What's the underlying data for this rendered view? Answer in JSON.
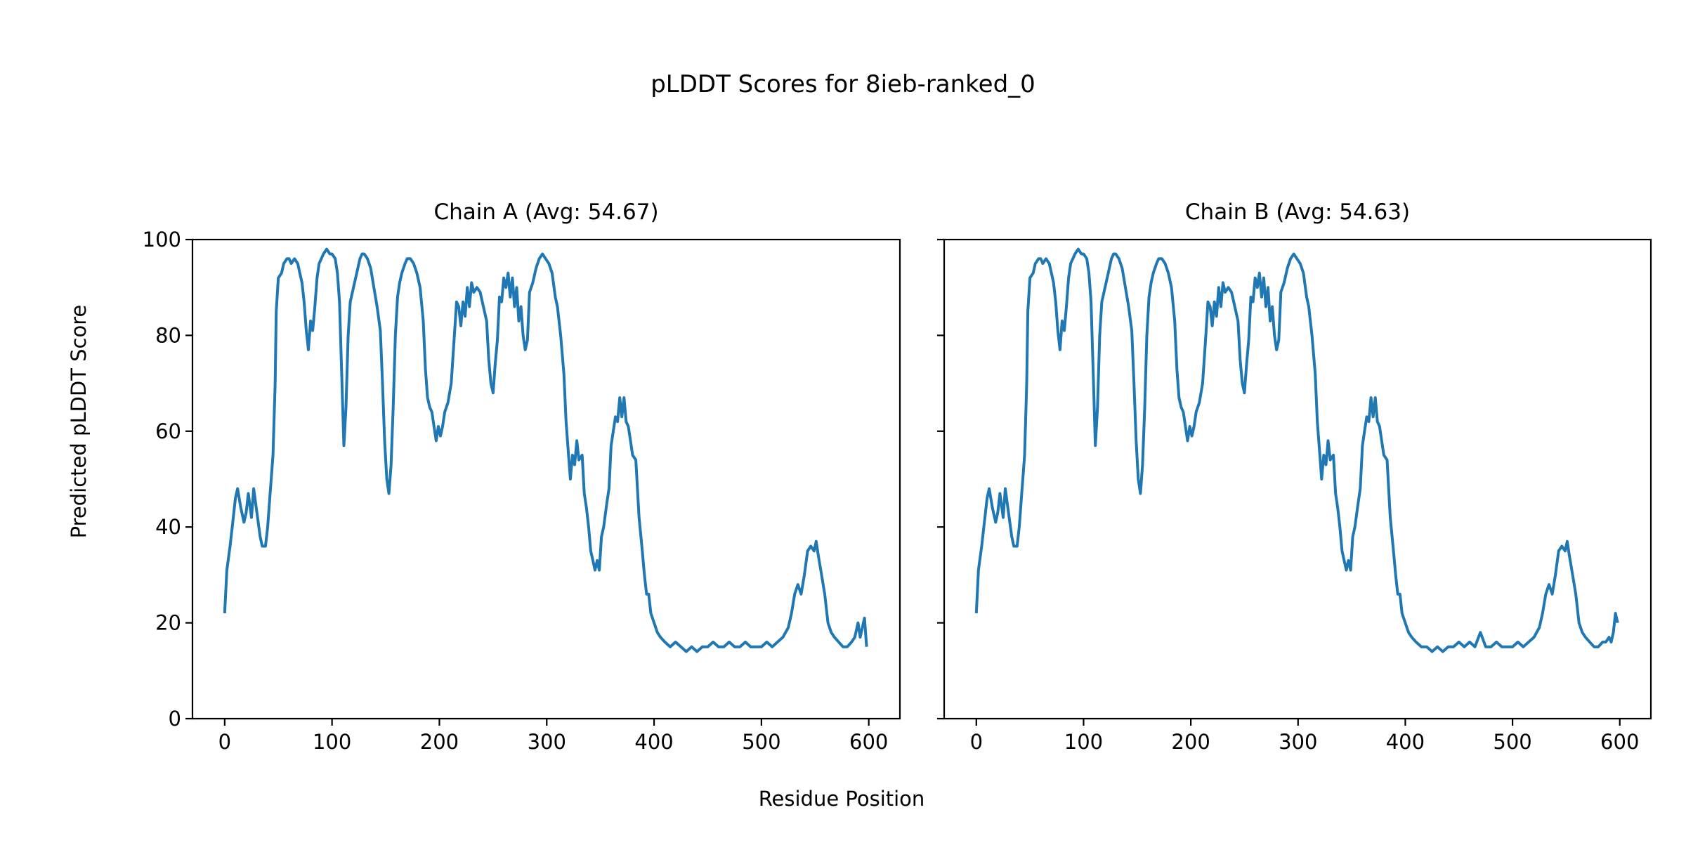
{
  "chart_data": {
    "type": "line",
    "title": "pLDDT Scores for 8ieb-ranked_0",
    "xlabel": "Residue Position",
    "ylabel": "Predicted pLDDT Score",
    "line_color": "#1f77b4",
    "shared_y": true,
    "xlim": [
      -30,
      629
    ],
    "ylim": [
      0,
      100
    ],
    "xticks": [
      0,
      100,
      200,
      300,
      400,
      500,
      600
    ],
    "yticks": [
      0,
      20,
      40,
      60,
      80,
      100
    ],
    "grid": false,
    "panels": [
      {
        "title": "Chain A (Avg: 54.67)",
        "x": [
          0,
          2,
          5,
          8,
          10,
          12,
          15,
          18,
          20,
          22,
          25,
          27,
          30,
          33,
          35,
          38,
          40,
          42,
          45,
          47,
          48,
          50,
          53,
          55,
          58,
          60,
          62,
          65,
          68,
          70,
          72,
          74,
          76,
          78,
          80,
          82,
          84,
          86,
          88,
          90,
          92,
          95,
          98,
          100,
          103,
          105,
          107,
          109,
          111,
          113,
          115,
          117,
          120,
          123,
          126,
          128,
          130,
          133,
          136,
          139,
          142,
          145,
          147,
          149,
          151,
          153,
          155,
          157,
          159,
          161,
          163,
          165,
          168,
          170,
          173,
          176,
          179,
          182,
          185,
          187,
          189,
          191,
          193,
          195,
          197,
          199,
          201,
          203,
          205,
          208,
          211,
          214,
          216,
          218,
          220,
          222,
          224,
          226,
          228,
          230,
          232,
          235,
          238,
          241,
          244,
          246,
          248,
          250,
          252,
          254,
          256,
          258,
          260,
          262,
          264,
          266,
          268,
          270,
          272,
          274,
          276,
          278,
          280,
          282,
          284,
          287,
          290,
          293,
          296,
          299,
          302,
          305,
          308,
          310,
          313,
          316,
          318,
          320,
          322,
          324,
          326,
          328,
          330,
          333,
          335,
          337,
          339,
          341,
          343,
          345,
          347,
          349,
          351,
          353,
          356,
          358,
          360,
          362,
          364,
          366,
          368,
          370,
          372,
          374,
          376,
          378,
          380,
          383,
          386,
          389,
          391,
          393,
          395,
          397,
          400,
          403,
          406,
          410,
          415,
          420,
          425,
          430,
          435,
          440,
          445,
          450,
          455,
          460,
          465,
          470,
          475,
          480,
          485,
          490,
          495,
          500,
          505,
          510,
          515,
          520,
          525,
          528,
          531,
          534,
          537,
          540,
          543,
          546,
          549,
          551,
          553,
          556,
          559,
          562,
          565,
          568,
          572,
          576,
          580,
          584,
          587,
          590,
          592,
          594,
          596,
          598
        ],
        "y": [
          22,
          31,
          36,
          42,
          46,
          48,
          44,
          41,
          43,
          47,
          42,
          48,
          43,
          38,
          36,
          36,
          40,
          46,
          55,
          70,
          85,
          92,
          93,
          95,
          96,
          96,
          95,
          96,
          95,
          93,
          91,
          87,
          81,
          77,
          83,
          81,
          86,
          92,
          95,
          96,
          97,
          98,
          97,
          97,
          96,
          93,
          87,
          72,
          57,
          65,
          80,
          87,
          90,
          93,
          96,
          97,
          97,
          96,
          94,
          90,
          86,
          81,
          70,
          58,
          50,
          47,
          53,
          65,
          80,
          88,
          91,
          93,
          95,
          96,
          96,
          95,
          93,
          90,
          83,
          73,
          67,
          65,
          64,
          61,
          58,
          61,
          59,
          61,
          64,
          66,
          70,
          80,
          87,
          86,
          82,
          87,
          84,
          90,
          86,
          91,
          89,
          90,
          89,
          86,
          83,
          75,
          70,
          68,
          74,
          79,
          88,
          87,
          92,
          90,
          93,
          88,
          92,
          86,
          90,
          83,
          86,
          80,
          77,
          79,
          89,
          91,
          94,
          96,
          97,
          96,
          95,
          93,
          88,
          86,
          80,
          72,
          62,
          56,
          50,
          55,
          53,
          58,
          54,
          55,
          47,
          44,
          40,
          35,
          33,
          31,
          33,
          31,
          38,
          40,
          45,
          48,
          57,
          60,
          63,
          62,
          67,
          63,
          67,
          62,
          61,
          58,
          55,
          54,
          42,
          35,
          30,
          26,
          26,
          22,
          20,
          18,
          17,
          16,
          15,
          16,
          15,
          14,
          15,
          14,
          15,
          15,
          16,
          15,
          15,
          16,
          15,
          15,
          16,
          15,
          15,
          15,
          16,
          15,
          16,
          17,
          19,
          22,
          26,
          28,
          26,
          30,
          35,
          36,
          35,
          37,
          34,
          30,
          26,
          20,
          18,
          17,
          16,
          15,
          15,
          16,
          17,
          20,
          17,
          19,
          21,
          15
        ]
      },
      {
        "title": "Chain B (Avg: 54.63)",
        "x": [
          0,
          2,
          5,
          8,
          10,
          12,
          15,
          18,
          20,
          22,
          25,
          27,
          30,
          33,
          35,
          38,
          40,
          42,
          45,
          47,
          48,
          50,
          53,
          55,
          58,
          60,
          62,
          65,
          68,
          70,
          72,
          74,
          76,
          78,
          80,
          82,
          84,
          86,
          88,
          90,
          92,
          95,
          98,
          100,
          103,
          105,
          107,
          109,
          111,
          113,
          115,
          117,
          120,
          123,
          126,
          128,
          130,
          133,
          136,
          139,
          142,
          145,
          147,
          149,
          151,
          153,
          155,
          157,
          159,
          161,
          163,
          165,
          168,
          170,
          173,
          176,
          179,
          182,
          185,
          187,
          189,
          191,
          193,
          195,
          197,
          199,
          201,
          203,
          205,
          208,
          211,
          214,
          216,
          218,
          220,
          222,
          224,
          226,
          228,
          230,
          232,
          235,
          238,
          241,
          244,
          246,
          248,
          250,
          252,
          254,
          256,
          258,
          260,
          262,
          264,
          266,
          268,
          270,
          272,
          274,
          276,
          278,
          280,
          282,
          284,
          287,
          290,
          293,
          296,
          299,
          302,
          305,
          308,
          310,
          313,
          316,
          318,
          320,
          322,
          324,
          326,
          328,
          330,
          333,
          335,
          337,
          339,
          341,
          343,
          345,
          347,
          349,
          351,
          353,
          356,
          358,
          360,
          362,
          364,
          366,
          368,
          370,
          372,
          374,
          376,
          378,
          380,
          383,
          386,
          389,
          391,
          393,
          395,
          397,
          400,
          403,
          406,
          410,
          415,
          420,
          425,
          430,
          435,
          440,
          445,
          450,
          455,
          460,
          465,
          470,
          475,
          480,
          485,
          490,
          495,
          500,
          505,
          510,
          515,
          520,
          525,
          528,
          531,
          534,
          537,
          540,
          543,
          546,
          549,
          551,
          553,
          556,
          559,
          562,
          565,
          568,
          572,
          576,
          580,
          584,
          587,
          590,
          592,
          594,
          596,
          598
        ],
        "y": [
          22,
          31,
          36,
          42,
          46,
          48,
          44,
          41,
          43,
          47,
          42,
          48,
          43,
          38,
          36,
          36,
          40,
          46,
          55,
          70,
          85,
          92,
          93,
          95,
          96,
          96,
          95,
          96,
          95,
          93,
          91,
          87,
          81,
          77,
          83,
          81,
          86,
          92,
          95,
          96,
          97,
          98,
          97,
          97,
          96,
          93,
          87,
          72,
          57,
          65,
          80,
          87,
          90,
          93,
          96,
          97,
          97,
          96,
          94,
          90,
          86,
          81,
          70,
          58,
          50,
          47,
          53,
          65,
          80,
          88,
          91,
          93,
          95,
          96,
          96,
          95,
          93,
          90,
          83,
          73,
          67,
          65,
          64,
          61,
          58,
          61,
          59,
          61,
          64,
          66,
          70,
          80,
          87,
          86,
          82,
          87,
          84,
          90,
          86,
          91,
          89,
          90,
          89,
          86,
          83,
          75,
          70,
          68,
          74,
          79,
          88,
          87,
          92,
          90,
          93,
          88,
          92,
          86,
          90,
          83,
          86,
          80,
          77,
          79,
          89,
          91,
          94,
          96,
          97,
          96,
          95,
          93,
          88,
          86,
          80,
          72,
          62,
          56,
          50,
          55,
          53,
          58,
          54,
          55,
          47,
          44,
          40,
          35,
          33,
          31,
          33,
          31,
          38,
          40,
          45,
          48,
          57,
          60,
          63,
          62,
          67,
          63,
          67,
          62,
          61,
          58,
          55,
          54,
          42,
          35,
          30,
          26,
          26,
          22,
          20,
          18,
          17,
          16,
          15,
          15,
          14,
          15,
          14,
          15,
          15,
          16,
          15,
          16,
          15,
          18,
          15,
          15,
          16,
          15,
          15,
          15,
          16,
          15,
          16,
          17,
          19,
          22,
          26,
          28,
          26,
          30,
          35,
          36,
          35,
          37,
          34,
          30,
          26,
          20,
          18,
          17,
          16,
          15,
          15,
          16,
          16,
          17,
          16,
          18,
          22,
          20
        ]
      }
    ]
  }
}
